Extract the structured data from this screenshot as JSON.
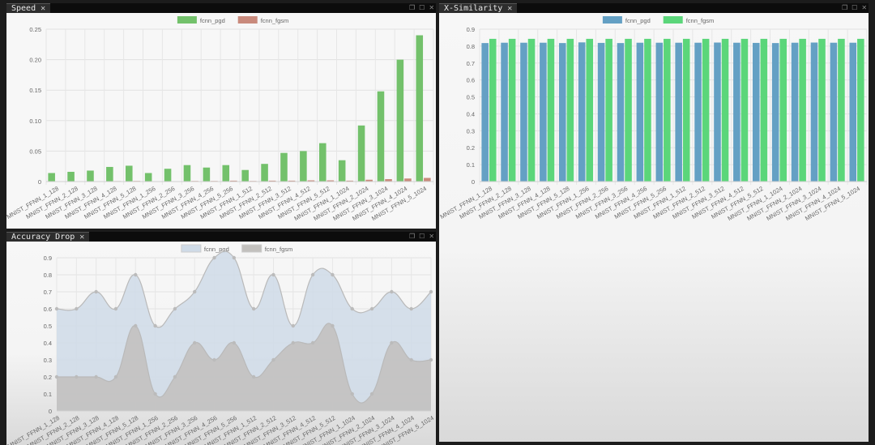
{
  "panels": {
    "speed": {
      "title": "Speed"
    },
    "xsim": {
      "title": "X-Similarity"
    },
    "acc": {
      "title": "Accuracy Drop"
    }
  },
  "icons": {
    "close": "close-icon",
    "restore": "restore-icon",
    "maximize": "maximize-icon"
  },
  "chart_data": [
    {
      "id": "speed",
      "type": "bar",
      "categories": [
        "MNIST_FFNN_1_128",
        "MNIST_FFNN_2_128",
        "MNIST_FFNN_3_128",
        "MNIST_FFNN_4_128",
        "MNIST_FFNN_5_128",
        "MNIST_FFNN_1_256",
        "MNIST_FFNN_2_256",
        "MNIST_FFNN_3_256",
        "MNIST_FFNN_4_256",
        "MNIST_FFNN_5_256",
        "MNIST_FFNN_1_512",
        "MNIST_FFNN_2_512",
        "MNIST_FFNN_3_512",
        "MNIST_FFNN_4_512",
        "MNIST_FFNN_5_512",
        "MNIST_FFNN_1_1024",
        "MNIST_FFNN_2_1024",
        "MNIST_FFNN_3_1024",
        "MNIST_FFNN_4_1024",
        "MNIST_FFNN_5_1024"
      ],
      "series": [
        {
          "name": "fcnn_pgd",
          "color": "#73c16b",
          "values": [
            0.014,
            0.016,
            0.018,
            0.024,
            0.026,
            0.014,
            0.021,
            0.027,
            0.023,
            0.027,
            0.019,
            0.029,
            0.047,
            0.05,
            0.063,
            0.035,
            0.092,
            0.148,
            0.2,
            0.24
          ]
        },
        {
          "name": "fcnn_fgsm",
          "color": "#c98a7c",
          "values": [
            0.0005,
            0.0005,
            0.0005,
            0.0008,
            0.001,
            0.0005,
            0.0005,
            0.001,
            0.001,
            0.0015,
            0.001,
            0.0015,
            0.0015,
            0.002,
            0.002,
            0.0015,
            0.003,
            0.004,
            0.005,
            0.006
          ]
        }
      ],
      "yticks": [
        "0",
        "0.05",
        "0.10",
        "0.15",
        "0.20",
        "0.25"
      ],
      "ylim": [
        0,
        0.25
      ],
      "grid": true,
      "legend": "top"
    },
    {
      "id": "xsim",
      "type": "bar",
      "categories": [
        "MNIST_FFNN_1_128",
        "MNIST_FFNN_2_128",
        "MNIST_FFNN_3_128",
        "MNIST_FFNN_4_128",
        "MNIST_FFNN_5_128",
        "MNIST_FFNN_1_256",
        "MNIST_FFNN_2_256",
        "MNIST_FFNN_3_256",
        "MNIST_FFNN_4_256",
        "MNIST_FFNN_5_256",
        "MNIST_FFNN_1_512",
        "MNIST_FFNN_2_512",
        "MNIST_FFNN_3_512",
        "MNIST_FFNN_4_512",
        "MNIST_FFNN_5_512",
        "MNIST_FFNN_1_1024",
        "MNIST_FFNN_2_1024",
        "MNIST_FFNN_3_1024",
        "MNIST_FFNN_4_1024",
        "MNIST_FFNN_5_1024"
      ],
      "series": [
        {
          "name": "fcnn_pgd",
          "color": "#64a0c4",
          "values": [
            0.818,
            0.82,
            0.82,
            0.82,
            0.818,
            0.822,
            0.819,
            0.818,
            0.82,
            0.82,
            0.82,
            0.82,
            0.821,
            0.82,
            0.819,
            0.818,
            0.82,
            0.821,
            0.82,
            0.82
          ]
        },
        {
          "name": "fcnn_fgsm",
          "color": "#5bd67a",
          "values": [
            0.843,
            0.843,
            0.843,
            0.843,
            0.843,
            0.843,
            0.843,
            0.843,
            0.843,
            0.843,
            0.843,
            0.843,
            0.843,
            0.843,
            0.843,
            0.843,
            0.843,
            0.843,
            0.843,
            0.843
          ]
        }
      ],
      "yticks": [
        "0",
        "0.1",
        "0.2",
        "0.3",
        "0.4",
        "0.5",
        "0.6",
        "0.7",
        "0.8",
        "0.9"
      ],
      "ylim": [
        0,
        0.9
      ],
      "grid": true,
      "legend": "top"
    },
    {
      "id": "acc",
      "type": "area",
      "categories": [
        "MNIST_FFNN_1_128",
        "MNIST_FFNN_2_128",
        "MNIST_FFNN_3_128",
        "MNIST_FFNN_4_128",
        "MNIST_FFNN_5_128",
        "MNIST_FFNN_1_256",
        "MNIST_FFNN_2_256",
        "MNIST_FFNN_3_256",
        "MNIST_FFNN_4_256",
        "MNIST_FFNN_5_256",
        "MNIST_FFNN_1_512",
        "MNIST_FFNN_2_512",
        "MNIST_FFNN_3_512",
        "MNIST_FFNN_4_512",
        "MNIST_FFNN_5_512",
        "MNIST_FFNN_1_1024",
        "MNIST_FFNN_2_1024",
        "MNIST_FFNN_3_1024",
        "MNIST_FFNN_4_1024",
        "MNIST_FFNN_5_1024"
      ],
      "series": [
        {
          "name": "fcnn_pgd",
          "color": "#cfdbe7",
          "values": [
            0.6,
            0.6,
            0.7,
            0.6,
            0.8,
            0.5,
            0.6,
            0.7,
            0.9,
            0.9,
            0.6,
            0.8,
            0.5,
            0.8,
            0.8,
            0.6,
            0.6,
            0.7,
            0.6,
            0.7
          ]
        },
        {
          "name": "fcnn_fgsm",
          "color": "#c2c0bd",
          "values": [
            0.2,
            0.2,
            0.2,
            0.2,
            0.5,
            0.1,
            0.2,
            0.4,
            0.3,
            0.4,
            0.2,
            0.3,
            0.4,
            0.4,
            0.5,
            0.1,
            0.1,
            0.4,
            0.3,
            0.3
          ]
        }
      ],
      "yticks": [
        "0",
        "0.1",
        "0.2",
        "0.3",
        "0.4",
        "0.5",
        "0.6",
        "0.7",
        "0.8",
        "0.9"
      ],
      "ylim": [
        0,
        0.9
      ],
      "grid": true,
      "legend": "top"
    }
  ]
}
